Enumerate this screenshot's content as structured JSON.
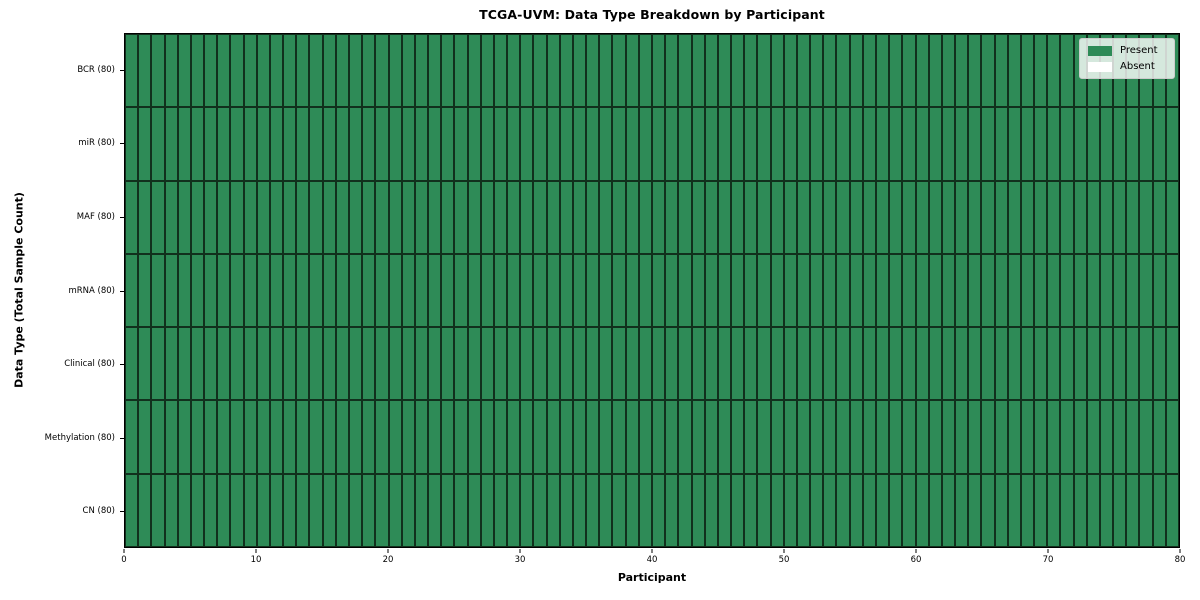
{
  "figure": {
    "title": "TCGA-UVM: Data Type Breakdown by Participant",
    "xlabel": "Participant",
    "ylabel": "Data Type (Total Sample Count)"
  },
  "legend": {
    "position": "upper-right",
    "items": [
      {
        "label": "Present",
        "color": "#2e8b57"
      },
      {
        "label": "Absent",
        "color": "#ffffff"
      }
    ]
  },
  "chart_data": {
    "type": "heatmap",
    "title": "TCGA-UVM: Data Type Breakdown by Participant",
    "xlabel": "Participant",
    "ylabel": "Data Type (Total Sample Count)",
    "xlim": [
      0,
      80
    ],
    "x_ticks": [
      0,
      10,
      20,
      30,
      40,
      50,
      60,
      70,
      80
    ],
    "n_participants": 80,
    "grid": "cell-edges-on",
    "legend_position": "upper-right",
    "value_meaning": {
      "1": "Present",
      "0": "Absent"
    },
    "colors": {
      "present": "#2e8b57",
      "absent": "#ffffff",
      "cell_edge": "rgba(10,25,15,0.8)"
    },
    "rows": [
      {
        "label": "BCR (80)",
        "present_count": 80,
        "values": [
          1,
          1,
          1,
          1,
          1,
          1,
          1,
          1,
          1,
          1,
          1,
          1,
          1,
          1,
          1,
          1,
          1,
          1,
          1,
          1,
          1,
          1,
          1,
          1,
          1,
          1,
          1,
          1,
          1,
          1,
          1,
          1,
          1,
          1,
          1,
          1,
          1,
          1,
          1,
          1,
          1,
          1,
          1,
          1,
          1,
          1,
          1,
          1,
          1,
          1,
          1,
          1,
          1,
          1,
          1,
          1,
          1,
          1,
          1,
          1,
          1,
          1,
          1,
          1,
          1,
          1,
          1,
          1,
          1,
          1,
          1,
          1,
          1,
          1,
          1,
          1,
          1,
          1,
          1,
          1
        ]
      },
      {
        "label": "miR (80)",
        "present_count": 80,
        "values": [
          1,
          1,
          1,
          1,
          1,
          1,
          1,
          1,
          1,
          1,
          1,
          1,
          1,
          1,
          1,
          1,
          1,
          1,
          1,
          1,
          1,
          1,
          1,
          1,
          1,
          1,
          1,
          1,
          1,
          1,
          1,
          1,
          1,
          1,
          1,
          1,
          1,
          1,
          1,
          1,
          1,
          1,
          1,
          1,
          1,
          1,
          1,
          1,
          1,
          1,
          1,
          1,
          1,
          1,
          1,
          1,
          1,
          1,
          1,
          1,
          1,
          1,
          1,
          1,
          1,
          1,
          1,
          1,
          1,
          1,
          1,
          1,
          1,
          1,
          1,
          1,
          1,
          1,
          1,
          1
        ]
      },
      {
        "label": "MAF (80)",
        "present_count": 80,
        "values": [
          1,
          1,
          1,
          1,
          1,
          1,
          1,
          1,
          1,
          1,
          1,
          1,
          1,
          1,
          1,
          1,
          1,
          1,
          1,
          1,
          1,
          1,
          1,
          1,
          1,
          1,
          1,
          1,
          1,
          1,
          1,
          1,
          1,
          1,
          1,
          1,
          1,
          1,
          1,
          1,
          1,
          1,
          1,
          1,
          1,
          1,
          1,
          1,
          1,
          1,
          1,
          1,
          1,
          1,
          1,
          1,
          1,
          1,
          1,
          1,
          1,
          1,
          1,
          1,
          1,
          1,
          1,
          1,
          1,
          1,
          1,
          1,
          1,
          1,
          1,
          1,
          1,
          1,
          1,
          1
        ]
      },
      {
        "label": "mRNA (80)",
        "present_count": 80,
        "values": [
          1,
          1,
          1,
          1,
          1,
          1,
          1,
          1,
          1,
          1,
          1,
          1,
          1,
          1,
          1,
          1,
          1,
          1,
          1,
          1,
          1,
          1,
          1,
          1,
          1,
          1,
          1,
          1,
          1,
          1,
          1,
          1,
          1,
          1,
          1,
          1,
          1,
          1,
          1,
          1,
          1,
          1,
          1,
          1,
          1,
          1,
          1,
          1,
          1,
          1,
          1,
          1,
          1,
          1,
          1,
          1,
          1,
          1,
          1,
          1,
          1,
          1,
          1,
          1,
          1,
          1,
          1,
          1,
          1,
          1,
          1,
          1,
          1,
          1,
          1,
          1,
          1,
          1,
          1,
          1
        ]
      },
      {
        "label": "Clinical (80)",
        "present_count": 80,
        "values": [
          1,
          1,
          1,
          1,
          1,
          1,
          1,
          1,
          1,
          1,
          1,
          1,
          1,
          1,
          1,
          1,
          1,
          1,
          1,
          1,
          1,
          1,
          1,
          1,
          1,
          1,
          1,
          1,
          1,
          1,
          1,
          1,
          1,
          1,
          1,
          1,
          1,
          1,
          1,
          1,
          1,
          1,
          1,
          1,
          1,
          1,
          1,
          1,
          1,
          1,
          1,
          1,
          1,
          1,
          1,
          1,
          1,
          1,
          1,
          1,
          1,
          1,
          1,
          1,
          1,
          1,
          1,
          1,
          1,
          1,
          1,
          1,
          1,
          1,
          1,
          1,
          1,
          1,
          1,
          1
        ]
      },
      {
        "label": "Methylation (80)",
        "present_count": 80,
        "values": [
          1,
          1,
          1,
          1,
          1,
          1,
          1,
          1,
          1,
          1,
          1,
          1,
          1,
          1,
          1,
          1,
          1,
          1,
          1,
          1,
          1,
          1,
          1,
          1,
          1,
          1,
          1,
          1,
          1,
          1,
          1,
          1,
          1,
          1,
          1,
          1,
          1,
          1,
          1,
          1,
          1,
          1,
          1,
          1,
          1,
          1,
          1,
          1,
          1,
          1,
          1,
          1,
          1,
          1,
          1,
          1,
          1,
          1,
          1,
          1,
          1,
          1,
          1,
          1,
          1,
          1,
          1,
          1,
          1,
          1,
          1,
          1,
          1,
          1,
          1,
          1,
          1,
          1,
          1,
          1
        ]
      },
      {
        "label": "CN (80)",
        "present_count": 80,
        "values": [
          1,
          1,
          1,
          1,
          1,
          1,
          1,
          1,
          1,
          1,
          1,
          1,
          1,
          1,
          1,
          1,
          1,
          1,
          1,
          1,
          1,
          1,
          1,
          1,
          1,
          1,
          1,
          1,
          1,
          1,
          1,
          1,
          1,
          1,
          1,
          1,
          1,
          1,
          1,
          1,
          1,
          1,
          1,
          1,
          1,
          1,
          1,
          1,
          1,
          1,
          1,
          1,
          1,
          1,
          1,
          1,
          1,
          1,
          1,
          1,
          1,
          1,
          1,
          1,
          1,
          1,
          1,
          1,
          1,
          1,
          1,
          1,
          1,
          1,
          1,
          1,
          1,
          1,
          1,
          1
        ]
      }
    ]
  }
}
